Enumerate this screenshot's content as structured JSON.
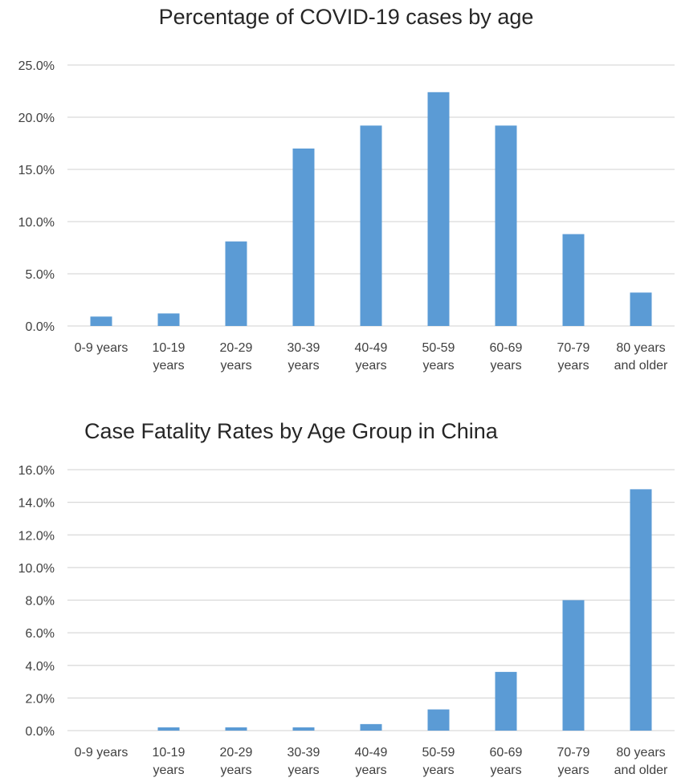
{
  "chart_data": [
    {
      "type": "bar",
      "title": "Percentage of COVID-19 cases by age",
      "xlabel": "",
      "ylabel": "",
      "categories": [
        "0-9 years",
        "10-19 years",
        "20-29 years",
        "30-39 years",
        "40-49 years",
        "50-59 years",
        "60-69 years",
        "70-79 years",
        "80 years and older"
      ],
      "category_lines": [
        [
          "0-9 years"
        ],
        [
          "10-19",
          "years"
        ],
        [
          "20-29",
          "years"
        ],
        [
          "30-39",
          "years"
        ],
        [
          "40-49",
          "years"
        ],
        [
          "50-59",
          "years"
        ],
        [
          "60-69",
          "years"
        ],
        [
          "70-79",
          "years"
        ],
        [
          "80 years",
          "and older"
        ]
      ],
      "values": [
        0.9,
        1.2,
        8.1,
        17.0,
        19.2,
        22.4,
        19.2,
        8.8,
        3.2
      ],
      "ylim": [
        0,
        25
      ],
      "yticks": [
        0,
        5,
        10,
        15,
        20,
        25
      ],
      "ytick_labels": [
        "0.0%",
        "5.0%",
        "10.0%",
        "15.0%",
        "20.0%",
        "25.0%"
      ],
      "grid": true,
      "legend": "none",
      "bar_color": "#5b9bd5"
    },
    {
      "type": "bar",
      "title": "Case Fatality Rates by Age Group in China",
      "xlabel": "",
      "ylabel": "",
      "categories": [
        "0-9 years",
        "10-19 years",
        "20-29 years",
        "30-39 years",
        "40-49 years",
        "50-59 years",
        "60-69 years",
        "70-79 years",
        "80 years and older"
      ],
      "category_lines": [
        [
          "0-9 years"
        ],
        [
          "10-19",
          "years"
        ],
        [
          "20-29",
          "years"
        ],
        [
          "30-39",
          "years"
        ],
        [
          "40-49",
          "years"
        ],
        [
          "50-59",
          "years"
        ],
        [
          "60-69",
          "years"
        ],
        [
          "70-79",
          "years"
        ],
        [
          "80 years",
          "and older"
        ]
      ],
      "values": [
        0.0,
        0.2,
        0.2,
        0.2,
        0.4,
        1.3,
        3.6,
        8.0,
        14.8
      ],
      "ylim": [
        0,
        16
      ],
      "yticks": [
        0,
        2,
        4,
        6,
        8,
        10,
        12,
        14,
        16
      ],
      "ytick_labels": [
        "0.0%",
        "2.0%",
        "4.0%",
        "6.0%",
        "8.0%",
        "10.0%",
        "12.0%",
        "14.0%",
        "16.0%"
      ],
      "grid": true,
      "legend": "none",
      "bar_color": "#5b9bd5"
    }
  ]
}
